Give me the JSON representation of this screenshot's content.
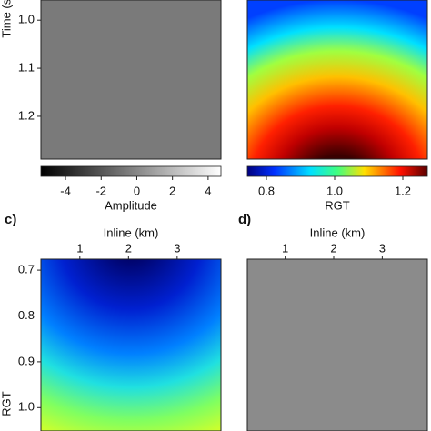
{
  "chart_data": [
    {
      "type": "heatmap",
      "y_label": "Time (s)",
      "ylim": [
        0.958,
        1.289
      ],
      "y_inverted": true,
      "yticks": [
        {
          "value": 1,
          "label": "1.0"
        },
        1.1,
        1.2
      ],
      "colorbar": {
        "label": "Amplitude",
        "lim": [
          -5.38,
          4.72
        ],
        "ticks": [
          -4,
          -2,
          0,
          2,
          4
        ],
        "colormap": "gray"
      }
    },
    {
      "type": "heatmap",
      "colorbar": {
        "label": "RGT",
        "lim": [
          0.744,
          1.272
        ],
        "ticks": [
          0.8,
          {
            "value": 1,
            "label": "1.0"
          },
          1.2
        ],
        "colormap": "jet"
      }
    },
    {
      "type": "heatmap",
      "panel_label": "c)",
      "x_label": "Inline (km)",
      "xlim": [
        0.2,
        3.9
      ],
      "xticks": [
        1,
        2,
        3
      ],
      "y_label": "RGT",
      "ylim": [
        0.676,
        1.051
      ],
      "y_inverted": true,
      "yticks": [
        0.7,
        0.8,
        0.9,
        {
          "value": 1,
          "label": "1.0"
        }
      ]
    },
    {
      "type": "heatmap",
      "panel_label": "d)",
      "x_label": "Inline (km)",
      "xlim": [
        0.22,
        3.93
      ],
      "xticks": [
        1,
        2,
        3
      ]
    }
  ]
}
